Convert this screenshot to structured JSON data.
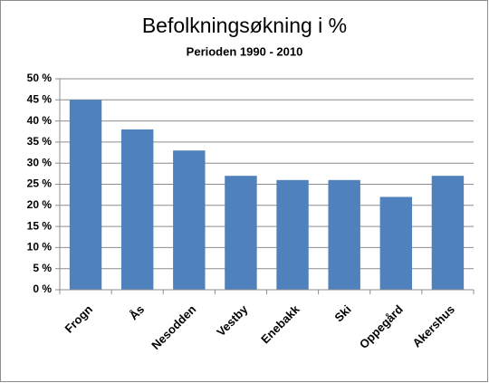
{
  "chart_data": {
    "type": "bar",
    "title": "Befolkningsøkning i %",
    "subtitle": "Perioden 1990 - 2010",
    "categories": [
      "Frogn",
      "Ås",
      "Nesodden",
      "Vestby",
      "Enebakk",
      "Ski",
      "Oppegård",
      "Akershus"
    ],
    "values": [
      45,
      38,
      33,
      27,
      26,
      26,
      22,
      27
    ],
    "color": "#4f81bd",
    "ylim": [
      0,
      50
    ],
    "yticks": [
      {
        "value": 0,
        "label": "0 %"
      },
      {
        "value": 5,
        "label": "5 %"
      },
      {
        "value": 10,
        "label": "10 %"
      },
      {
        "value": 15,
        "label": "15 %"
      },
      {
        "value": 20,
        "label": "20 %"
      },
      {
        "value": 25,
        "label": "25 %"
      },
      {
        "value": 30,
        "label": "30 %"
      },
      {
        "value": 35,
        "label": "35 %"
      },
      {
        "value": 40,
        "label": "40 %"
      },
      {
        "value": 45,
        "label": "45 %"
      },
      {
        "value": 50,
        "label": "50 %"
      }
    ],
    "grid": true
  }
}
